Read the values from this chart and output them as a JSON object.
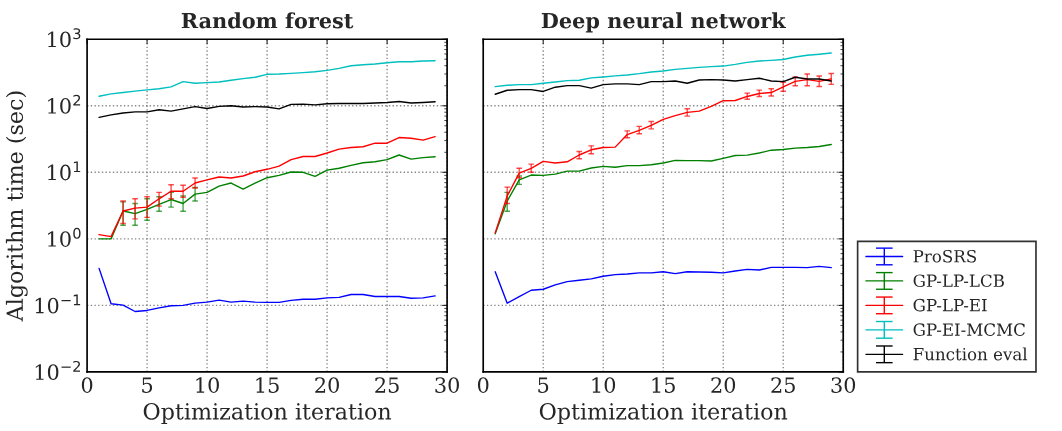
{
  "chart_data": [
    {
      "type": "line",
      "title": "Random forest",
      "xlabel": "Optimization iteration",
      "ylabel": "Algorithm time (sec)",
      "log": "y",
      "grid": true,
      "marker": "none",
      "line_style": "solid",
      "x": [
        1,
        2,
        3,
        4,
        5,
        6,
        7,
        8,
        9,
        10,
        11,
        12,
        13,
        14,
        15,
        16,
        17,
        18,
        19,
        20,
        21,
        22,
        23,
        24,
        25,
        26,
        27,
        28,
        29
      ],
      "xlim": [
        0,
        30
      ],
      "xticks": [
        0,
        5,
        10,
        15,
        20,
        25,
        30
      ],
      "ylim": [
        0.01,
        1000
      ],
      "yticks": [
        {
          "value": 0.01,
          "label": "10$^{−2}$"
        },
        {
          "value": 0.1,
          "label": "10$^{−1}$"
        },
        {
          "value": 1,
          "label": "10$^{0}$"
        },
        {
          "value": 10,
          "label": "10$^{1}$"
        },
        {
          "value": 100,
          "label": "10$^{2}$"
        },
        {
          "value": 1000,
          "label": "10$^{3}$"
        }
      ],
      "series": [
        {
          "color": "#0000ff",
          "values": [
            0.36,
            0.106,
            0.101,
            0.081,
            0.084,
            0.092,
            0.099,
            0.1,
            0.108,
            0.112,
            0.12,
            0.112,
            0.116,
            0.112,
            0.111,
            0.111,
            0.119,
            0.124,
            0.124,
            0.13,
            0.132,
            0.146,
            0.146,
            0.136,
            0.136,
            0.136,
            0.128,
            0.13,
            0.139
          ]
        },
        {
          "color": "#008000",
          "values": [
            1.0,
            1.0,
            2.62,
            2.39,
            2.77,
            3.3,
            3.9,
            3.4,
            4.7,
            5.0,
            6.2,
            6.9,
            5.6,
            6.9,
            8.3,
            9.0,
            10.1,
            10.0,
            8.7,
            10.8,
            11.5,
            12.7,
            13.9,
            14.4,
            15.5,
            18.2,
            15.8,
            16.6,
            17.1
          ],
          "errors": [
            null,
            null,
            [
              1.6,
              3.6
            ],
            [
              1.6,
              3.4
            ],
            [
              1.9,
              4.0
            ],
            [
              2.6,
              4.3
            ],
            [
              3.0,
              5.0
            ],
            [
              2.6,
              4.4
            ],
            [
              3.7,
              5.9
            ],
            null,
            null,
            null,
            null,
            null,
            null,
            null,
            null,
            null,
            null,
            null,
            null,
            null,
            null,
            null,
            null,
            null,
            null,
            null,
            null
          ]
        },
        {
          "color": "#ff0000",
          "values": [
            1.16,
            1.08,
            2.62,
            2.9,
            3.0,
            4.0,
            5.2,
            5.2,
            6.9,
            7.7,
            8.5,
            8.2,
            8.8,
            10.2,
            11.1,
            12.4,
            15.5,
            17.3,
            17.3,
            19.5,
            22.3,
            23.6,
            24.2,
            27.4,
            27.4,
            33.3,
            32.5,
            30.4,
            34.4
          ],
          "errors": [
            null,
            null,
            [
              1.7,
              3.7
            ],
            [
              2.0,
              4.0
            ],
            [
              2.1,
              4.3
            ],
            [
              3.1,
              5.0
            ],
            [
              4.0,
              6.5
            ],
            [
              4.2,
              6.4
            ],
            [
              5.8,
              8.2
            ],
            null,
            null,
            null,
            null,
            null,
            null,
            null,
            null,
            null,
            null,
            null,
            null,
            null,
            null,
            null,
            null,
            null,
            null,
            null,
            null
          ]
        },
        {
          "color": "#00bfbf",
          "values": [
            139,
            151,
            158,
            166,
            173,
            180,
            192,
            231,
            218,
            223,
            228,
            242,
            256,
            268,
            297,
            300,
            307,
            315,
            325,
            340,
            365,
            400,
            414,
            424,
            444,
            459,
            459,
            470,
            475
          ]
        },
        {
          "color": "#000000",
          "values": [
            67,
            73,
            78,
            81,
            81,
            87,
            83,
            90,
            97,
            91,
            98,
            100,
            96,
            97,
            96,
            90,
            105,
            106,
            103,
            107,
            108,
            108,
            108,
            110,
            112,
            116,
            110,
            112,
            115
          ]
        }
      ]
    },
    {
      "type": "line",
      "title": "Deep neural network",
      "xlabel": "Optimization iteration",
      "log": "y",
      "grid": true,
      "marker": "none",
      "line_style": "solid",
      "tick_labels": "x",
      "legend": "right",
      "x": [
        1,
        2,
        3,
        4,
        5,
        6,
        7,
        8,
        9,
        10,
        11,
        12,
        13,
        14,
        15,
        16,
        17,
        18,
        19,
        20,
        21,
        22,
        23,
        24,
        25,
        26,
        27,
        28,
        29
      ],
      "xlim": [
        0,
        30
      ],
      "xticks": [
        0,
        5,
        10,
        15,
        20,
        25,
        30
      ],
      "ylim": [
        0.01,
        1000
      ],
      "yticks": [
        {
          "value": 0.01,
          "label": null
        },
        {
          "value": 0.1,
          "label": null
        },
        {
          "value": 1,
          "label": null
        },
        {
          "value": 10,
          "label": null
        },
        {
          "value": 100,
          "label": null
        },
        {
          "value": 1000,
          "label": null
        }
      ],
      "series": [
        {
          "name": "ProSRS",
          "color": "#0000ff",
          "values": [
            0.32,
            0.108,
            0.136,
            0.169,
            0.175,
            0.203,
            0.228,
            0.239,
            0.25,
            0.274,
            0.29,
            0.297,
            0.308,
            0.308,
            0.32,
            0.3,
            0.32,
            0.318,
            0.315,
            0.308,
            0.329,
            0.348,
            0.34,
            0.373,
            0.373,
            0.373,
            0.37,
            0.386,
            0.37
          ]
        },
        {
          "name": "GP-LP-LCB",
          "color": "#008000",
          "values": [
            1.19,
            3.7,
            7.7,
            9.1,
            9.0,
            9.4,
            10.4,
            10.4,
            11.6,
            12.3,
            11.9,
            12.6,
            12.6,
            13.0,
            13.8,
            15.1,
            15.0,
            15.0,
            14.8,
            16.2,
            17.9,
            18.1,
            19.5,
            21.5,
            22.0,
            23.1,
            23.6,
            24.4,
            26.2
          ],
          "errors": [
            null,
            [
              2.6,
              5.0
            ],
            [
              6.6,
              8.8
            ],
            null,
            null,
            null,
            null,
            null,
            null,
            null,
            null,
            null,
            null,
            null,
            null,
            null,
            null,
            null,
            null,
            null,
            null,
            null,
            null,
            null,
            null,
            null,
            null,
            null,
            null
          ]
        },
        {
          "name": "GP-LP-EI",
          "color": "#ff0000",
          "values": [
            1.23,
            4.4,
            9.7,
            11.5,
            14.6,
            13.8,
            14.4,
            18.2,
            21.8,
            23.6,
            23.9,
            36.9,
            42.8,
            50.8,
            62.5,
            71,
            79.5,
            83,
            98,
            119,
            120,
            138,
            153,
            158,
            192,
            233,
            247,
            233,
            253
          ],
          "errors": [
            null,
            [
              3.4,
              6.0
            ],
            [
              8.3,
              11.5
            ],
            [
              10.0,
              13.3
            ],
            null,
            null,
            null,
            [
              16.0,
              20.5
            ],
            [
              19.0,
              25.0
            ],
            null,
            null,
            [
              33.0,
              42.0
            ],
            [
              38.0,
              49.0
            ],
            [
              45.0,
              58.0
            ],
            null,
            null,
            [
              70.0,
              90.0
            ],
            null,
            null,
            null,
            null,
            [
              125.0,
              155.0
            ],
            [
              138.0,
              172.0
            ],
            [
              140.0,
              180.0
            ],
            [
              165.0,
              225.0
            ],
            [
              200.0,
              270.0
            ],
            [
              200.0,
              300.0
            ],
            [
              195.0,
              280.0
            ],
            [
              210.0,
              305.0
            ]
          ]
        },
        {
          "name": "GP-EI-MCMC",
          "color": "#00bfbf",
          "values": [
            194,
            203,
            208,
            208,
            218,
            228,
            239,
            242,
            262,
            271,
            281,
            290,
            304,
            322,
            333,
            352,
            365,
            378,
            387,
            395,
            419,
            449,
            470,
            481,
            495,
            540,
            575,
            595,
            620
          ]
        },
        {
          "name": "Function eval",
          "color": "#000000",
          "values": [
            149,
            171,
            175,
            175,
            164,
            190,
            201,
            201,
            184,
            208,
            213,
            213,
            208,
            231,
            231,
            236,
            218,
            244,
            247,
            244,
            236,
            247,
            259,
            236,
            231,
            268,
            253,
            253,
            236
          ]
        }
      ]
    }
  ]
}
